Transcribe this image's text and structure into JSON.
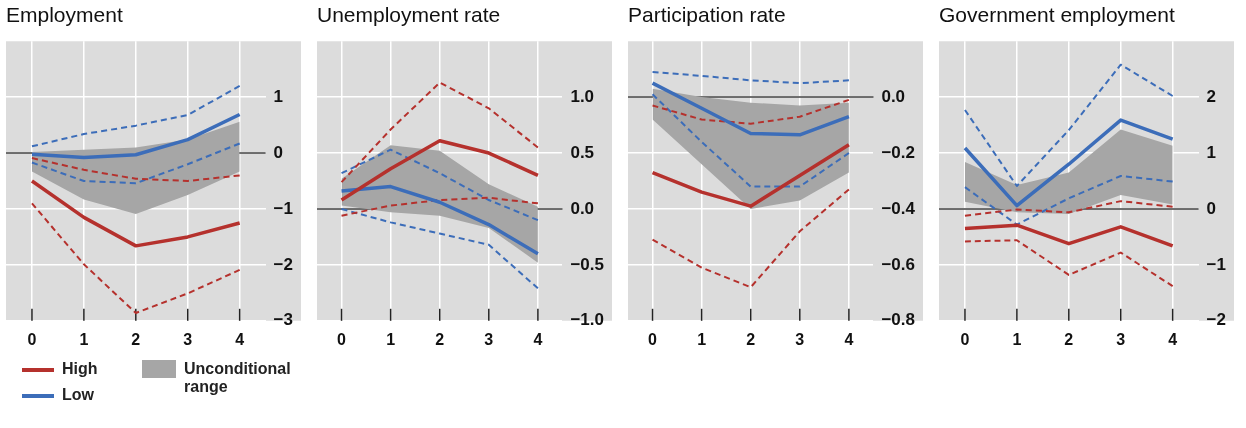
{
  "chart_data": [
    {
      "type": "line",
      "title": "Employment",
      "categories": [
        "0",
        "1",
        "2",
        "3",
        "4"
      ],
      "ylim": [
        -3,
        2
      ],
      "yticks": [
        {
          "value": -3,
          "label": "−3"
        },
        {
          "value": -2,
          "label": "−2"
        },
        {
          "value": -1,
          "label": "−1"
        },
        0,
        1
      ],
      "grid": true,
      "marker": "none",
      "legend": "bottom",
      "ref_lines": [
        {
          "axis": "y",
          "value": 0,
          "color": "#404040"
        }
      ],
      "series": [
        {
          "name": "High",
          "color": "#b5312d",
          "line_style": "solid",
          "values": [
            -0.5,
            -1.15,
            -1.66,
            -1.5,
            -1.25
          ]
        },
        {
          "name": "Low",
          "color": "#3c6db9",
          "line_style": "solid",
          "values": [
            -0.02,
            -0.08,
            -0.03,
            0.24,
            0.69
          ]
        },
        {
          "name": "Unconditional range",
          "color": "#a6a6a6",
          "values": [
            null,
            null,
            null,
            null,
            null
          ],
          "lower": [
            -0.33,
            -0.83,
            -1.09,
            -0.75,
            -0.33
          ],
          "upper": [
            0.02,
            0.06,
            0.1,
            0.24,
            0.56
          ]
        },
        {
          "color": "#b5312d",
          "line_style": "dashed",
          "values": [
            -0.09,
            -0.3,
            -0.46,
            -0.5,
            -0.4
          ]
        },
        {
          "color": "#b5312d",
          "line_style": "dashed",
          "values": [
            -0.9,
            -1.99,
            -2.86,
            -2.51,
            -2.09
          ]
        },
        {
          "color": "#3c6db9",
          "line_style": "dashed",
          "values": [
            0.12,
            0.34,
            0.49,
            0.68,
            1.2
          ]
        },
        {
          "color": "#3c6db9",
          "line_style": "dashed",
          "values": [
            -0.17,
            -0.5,
            -0.54,
            -0.2,
            0.17
          ]
        }
      ]
    },
    {
      "type": "line",
      "title": "Unemployment rate",
      "categories": [
        "0",
        "1",
        "2",
        "3",
        "4"
      ],
      "ylim": [
        -1,
        1.5
      ],
      "yticks": [
        {
          "value": -1,
          "label": "−1.0"
        },
        {
          "value": -0.5,
          "label": "−0.5"
        },
        {
          "value": 0,
          "label": "0.0"
        },
        0.5,
        {
          "value": 1,
          "label": "1.0"
        }
      ],
      "grid": true,
      "marker": "none",
      "ref_lines": [
        {
          "axis": "y",
          "value": 0,
          "color": "#404040"
        }
      ],
      "series": [
        {
          "color": "#b5312d",
          "line_style": "solid",
          "values": [
            0.08,
            0.36,
            0.61,
            0.5,
            0.3
          ]
        },
        {
          "color": "#3c6db9",
          "line_style": "solid",
          "values": [
            0.16,
            0.2,
            0.06,
            -0.14,
            -0.4
          ]
        },
        {
          "color": "#a6a6a6",
          "values": [
            null,
            null,
            null,
            null,
            null
          ],
          "lower": [
            0.03,
            -0.03,
            -0.06,
            -0.17,
            -0.48
          ],
          "upper": [
            0.27,
            0.57,
            0.52,
            0.22,
            0.02
          ]
        },
        {
          "color": "#b5312d",
          "line_style": "dashed",
          "values": [
            0.24,
            0.71,
            1.13,
            0.9,
            0.55
          ]
        },
        {
          "color": "#b5312d",
          "line_style": "dashed",
          "values": [
            -0.06,
            0.03,
            0.08,
            0.1,
            0.05
          ]
        },
        {
          "color": "#3c6db9",
          "line_style": "dashed",
          "values": [
            0.32,
            0.53,
            0.32,
            0.08,
            -0.1
          ]
        },
        {
          "color": "#3c6db9",
          "line_style": "dashed",
          "values": [
            0,
            -0.12,
            -0.22,
            -0.32,
            -0.71
          ]
        }
      ]
    },
    {
      "type": "line",
      "title": "Participation rate",
      "categories": [
        "0",
        "1",
        "2",
        "3",
        "4"
      ],
      "ylim": [
        -0.8,
        0.2
      ],
      "yticks": [
        {
          "value": -0.8,
          "label": "−0.8"
        },
        {
          "value": -0.6,
          "label": "−0.6"
        },
        {
          "value": -0.4,
          "label": "−0.4"
        },
        {
          "value": -0.2,
          "label": "−0.2"
        },
        {
          "value": 0,
          "label": "0.0"
        }
      ],
      "grid": true,
      "marker": "none",
      "ref_lines": [
        {
          "axis": "y",
          "value": 0,
          "color": "#404040"
        }
      ],
      "series": [
        {
          "color": "#b5312d",
          "line_style": "solid",
          "values": [
            -0.27,
            -0.34,
            -0.39,
            -0.28,
            -0.17
          ]
        },
        {
          "color": "#3c6db9",
          "line_style": "solid",
          "values": [
            0.05,
            -0.04,
            -0.13,
            -0.135,
            -0.07
          ]
        },
        {
          "color": "#a6a6a6",
          "values": [
            null,
            null,
            null,
            null,
            null
          ],
          "lower": [
            -0.08,
            -0.24,
            -0.4,
            -0.37,
            -0.27
          ],
          "upper": [
            0.03,
            0,
            -0.02,
            -0.03,
            -0.02
          ]
        },
        {
          "color": "#b5312d",
          "line_style": "dashed",
          "values": [
            -0.03,
            -0.08,
            -0.095,
            -0.07,
            -0.01
          ]
        },
        {
          "color": "#b5312d",
          "line_style": "dashed",
          "values": [
            -0.51,
            -0.61,
            -0.68,
            -0.48,
            -0.33
          ]
        },
        {
          "color": "#3c6db9",
          "line_style": "dashed",
          "values": [
            0.09,
            0.076,
            0.06,
            0.05,
            0.06
          ]
        },
        {
          "color": "#3c6db9",
          "line_style": "dashed",
          "values": [
            0.01,
            -0.16,
            -0.32,
            -0.32,
            -0.2
          ]
        }
      ]
    },
    {
      "type": "line",
      "title": "Government employment",
      "categories": [
        "0",
        "1",
        "2",
        "3",
        "4"
      ],
      "ylim": [
        -2,
        3
      ],
      "yticks": [
        {
          "value": -2,
          "label": "−2"
        },
        {
          "value": -1,
          "label": "−1"
        },
        0,
        1,
        2
      ],
      "grid": true,
      "marker": "none",
      "ref_lines": [
        {
          "axis": "y",
          "value": 0,
          "color": "#404040"
        }
      ],
      "series": [
        {
          "color": "#b5312d",
          "line_style": "solid",
          "values": [
            -0.35,
            -0.29,
            -0.62,
            -0.32,
            -0.66
          ]
        },
        {
          "color": "#3c6db9",
          "line_style": "solid",
          "values": [
            1.09,
            0.06,
            0.8,
            1.59,
            1.25
          ]
        },
        {
          "color": "#a6a6a6",
          "values": [
            null,
            null,
            null,
            null,
            null
          ],
          "lower": [
            0.13,
            -0.06,
            -0.09,
            0.25,
            0.08
          ],
          "upper": [
            0.84,
            0.43,
            0.65,
            1.42,
            1.13
          ]
        },
        {
          "color": "#b5312d",
          "line_style": "dashed",
          "values": [
            -0.12,
            -0.01,
            -0.06,
            0.14,
            0.04
          ]
        },
        {
          "color": "#b5312d",
          "line_style": "dashed",
          "values": [
            -0.58,
            -0.56,
            -1.18,
            -0.78,
            -1.38
          ]
        },
        {
          "color": "#3c6db9",
          "line_style": "dashed",
          "values": [
            1.77,
            0.41,
            1.41,
            2.58,
            2.02
          ]
        },
        {
          "color": "#3c6db9",
          "line_style": "dashed",
          "values": [
            0.39,
            -0.28,
            0.19,
            0.59,
            0.49
          ]
        }
      ]
    }
  ]
}
